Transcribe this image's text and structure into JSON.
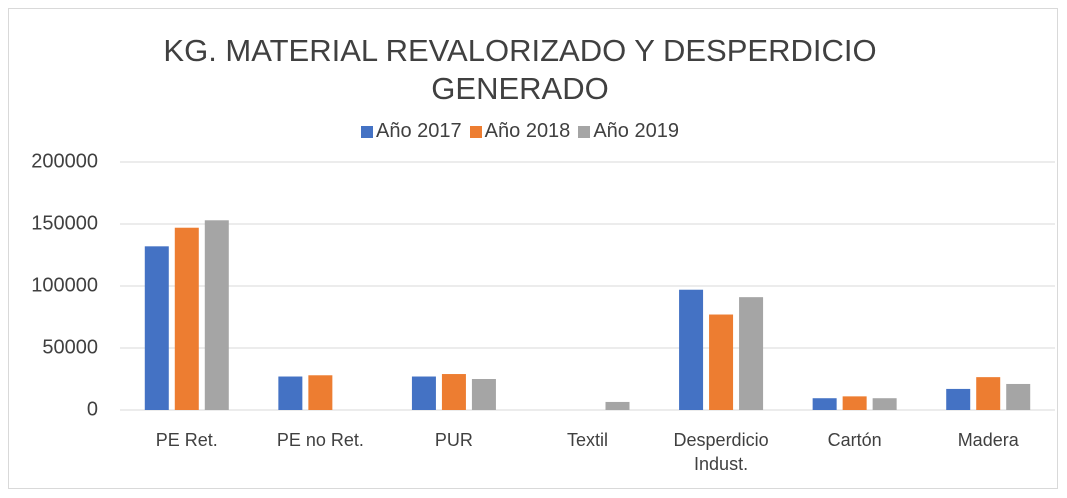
{
  "chart_data": {
    "type": "bar",
    "title": "KG. MATERIAL REVALORIZADO Y DESPERDICIO GENERADO",
    "categories": [
      "PE Ret.",
      "PE no Ret.",
      "PUR",
      "Textil",
      "Desperdicio Indust.",
      "Cartón",
      "Madera"
    ],
    "series": [
      {
        "name": "Año 2017",
        "color": "#4472c4",
        "values": [
          132000,
          27000,
          27000,
          0,
          97000,
          9500,
          17000
        ]
      },
      {
        "name": "Año 2018",
        "color": "#ed7d31",
        "values": [
          147000,
          28000,
          29000,
          0,
          77000,
          11000,
          26500
        ]
      },
      {
        "name": "Año 2019",
        "color": "#a5a5a5",
        "values": [
          153000,
          0,
          25000,
          6500,
          91000,
          9500,
          21000
        ]
      }
    ],
    "ylim": [
      0,
      200000
    ],
    "yticks": [
      0,
      50000,
      100000,
      150000,
      200000
    ],
    "grid": true,
    "legend": "top"
  }
}
